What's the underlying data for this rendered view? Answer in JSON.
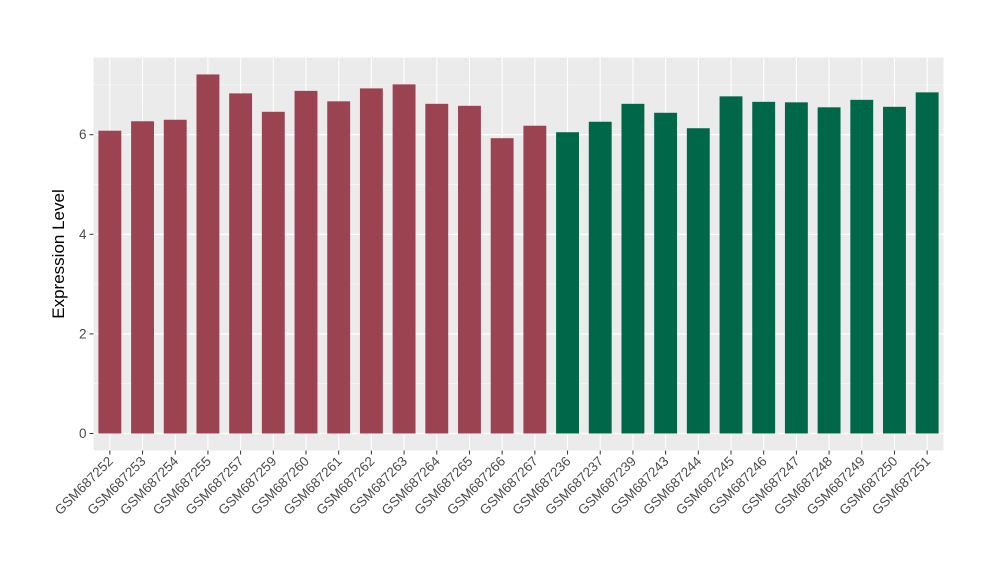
{
  "chart_data": {
    "type": "bar",
    "title": "",
    "xlabel": "",
    "ylabel": "Expression Level",
    "categories": [
      "GSM687252",
      "GSM687253",
      "GSM687254",
      "GSM687255",
      "GSM687257",
      "GSM687259",
      "GSM687260",
      "GSM687261",
      "GSM687262",
      "GSM687263",
      "GSM687264",
      "GSM687265",
      "GSM687266",
      "GSM687267",
      "GSM687236",
      "GSM687237",
      "GSM687239",
      "GSM687243",
      "GSM687244",
      "GSM687245",
      "GSM687246",
      "GSM687247",
      "GSM687248",
      "GSM687249",
      "GSM687250",
      "GSM687251"
    ],
    "values": [
      6.08,
      6.27,
      6.3,
      7.21,
      6.83,
      6.46,
      6.88,
      6.67,
      6.93,
      7.01,
      6.62,
      6.58,
      5.93,
      6.18,
      6.05,
      6.26,
      6.62,
      6.44,
      6.13,
      6.77,
      6.66,
      6.65,
      6.55,
      6.7,
      6.56,
      6.85
    ],
    "bar_colors": [
      "#9C4352",
      "#9C4352",
      "#9C4352",
      "#9C4352",
      "#9C4352",
      "#9C4352",
      "#9C4352",
      "#9C4352",
      "#9C4352",
      "#9C4352",
      "#9C4352",
      "#9C4352",
      "#9C4352",
      "#9C4352",
      "#006848",
      "#006848",
      "#006848",
      "#006848",
      "#006848",
      "#006848",
      "#006848",
      "#006848",
      "#006848",
      "#006848",
      "#006848",
      "#006848"
    ],
    "yticks": [
      0,
      2,
      4,
      6
    ],
    "yticks_minor": [
      1,
      3,
      5,
      7
    ],
    "ylim": [
      0,
      7.55
    ],
    "bar_width_fraction": 0.7,
    "x_tick_rotation_deg": 45,
    "legend": "none",
    "panel_background": "#EBEBEB",
    "grid_major_color": "#FFFFFF",
    "grid_minor_color": "#F5F5F5",
    "axis_text_color": "#4D4D4D",
    "axis_title_color": "#000000",
    "tick_mark_color": "#333333",
    "figure_background": "#FFFFFF"
  }
}
